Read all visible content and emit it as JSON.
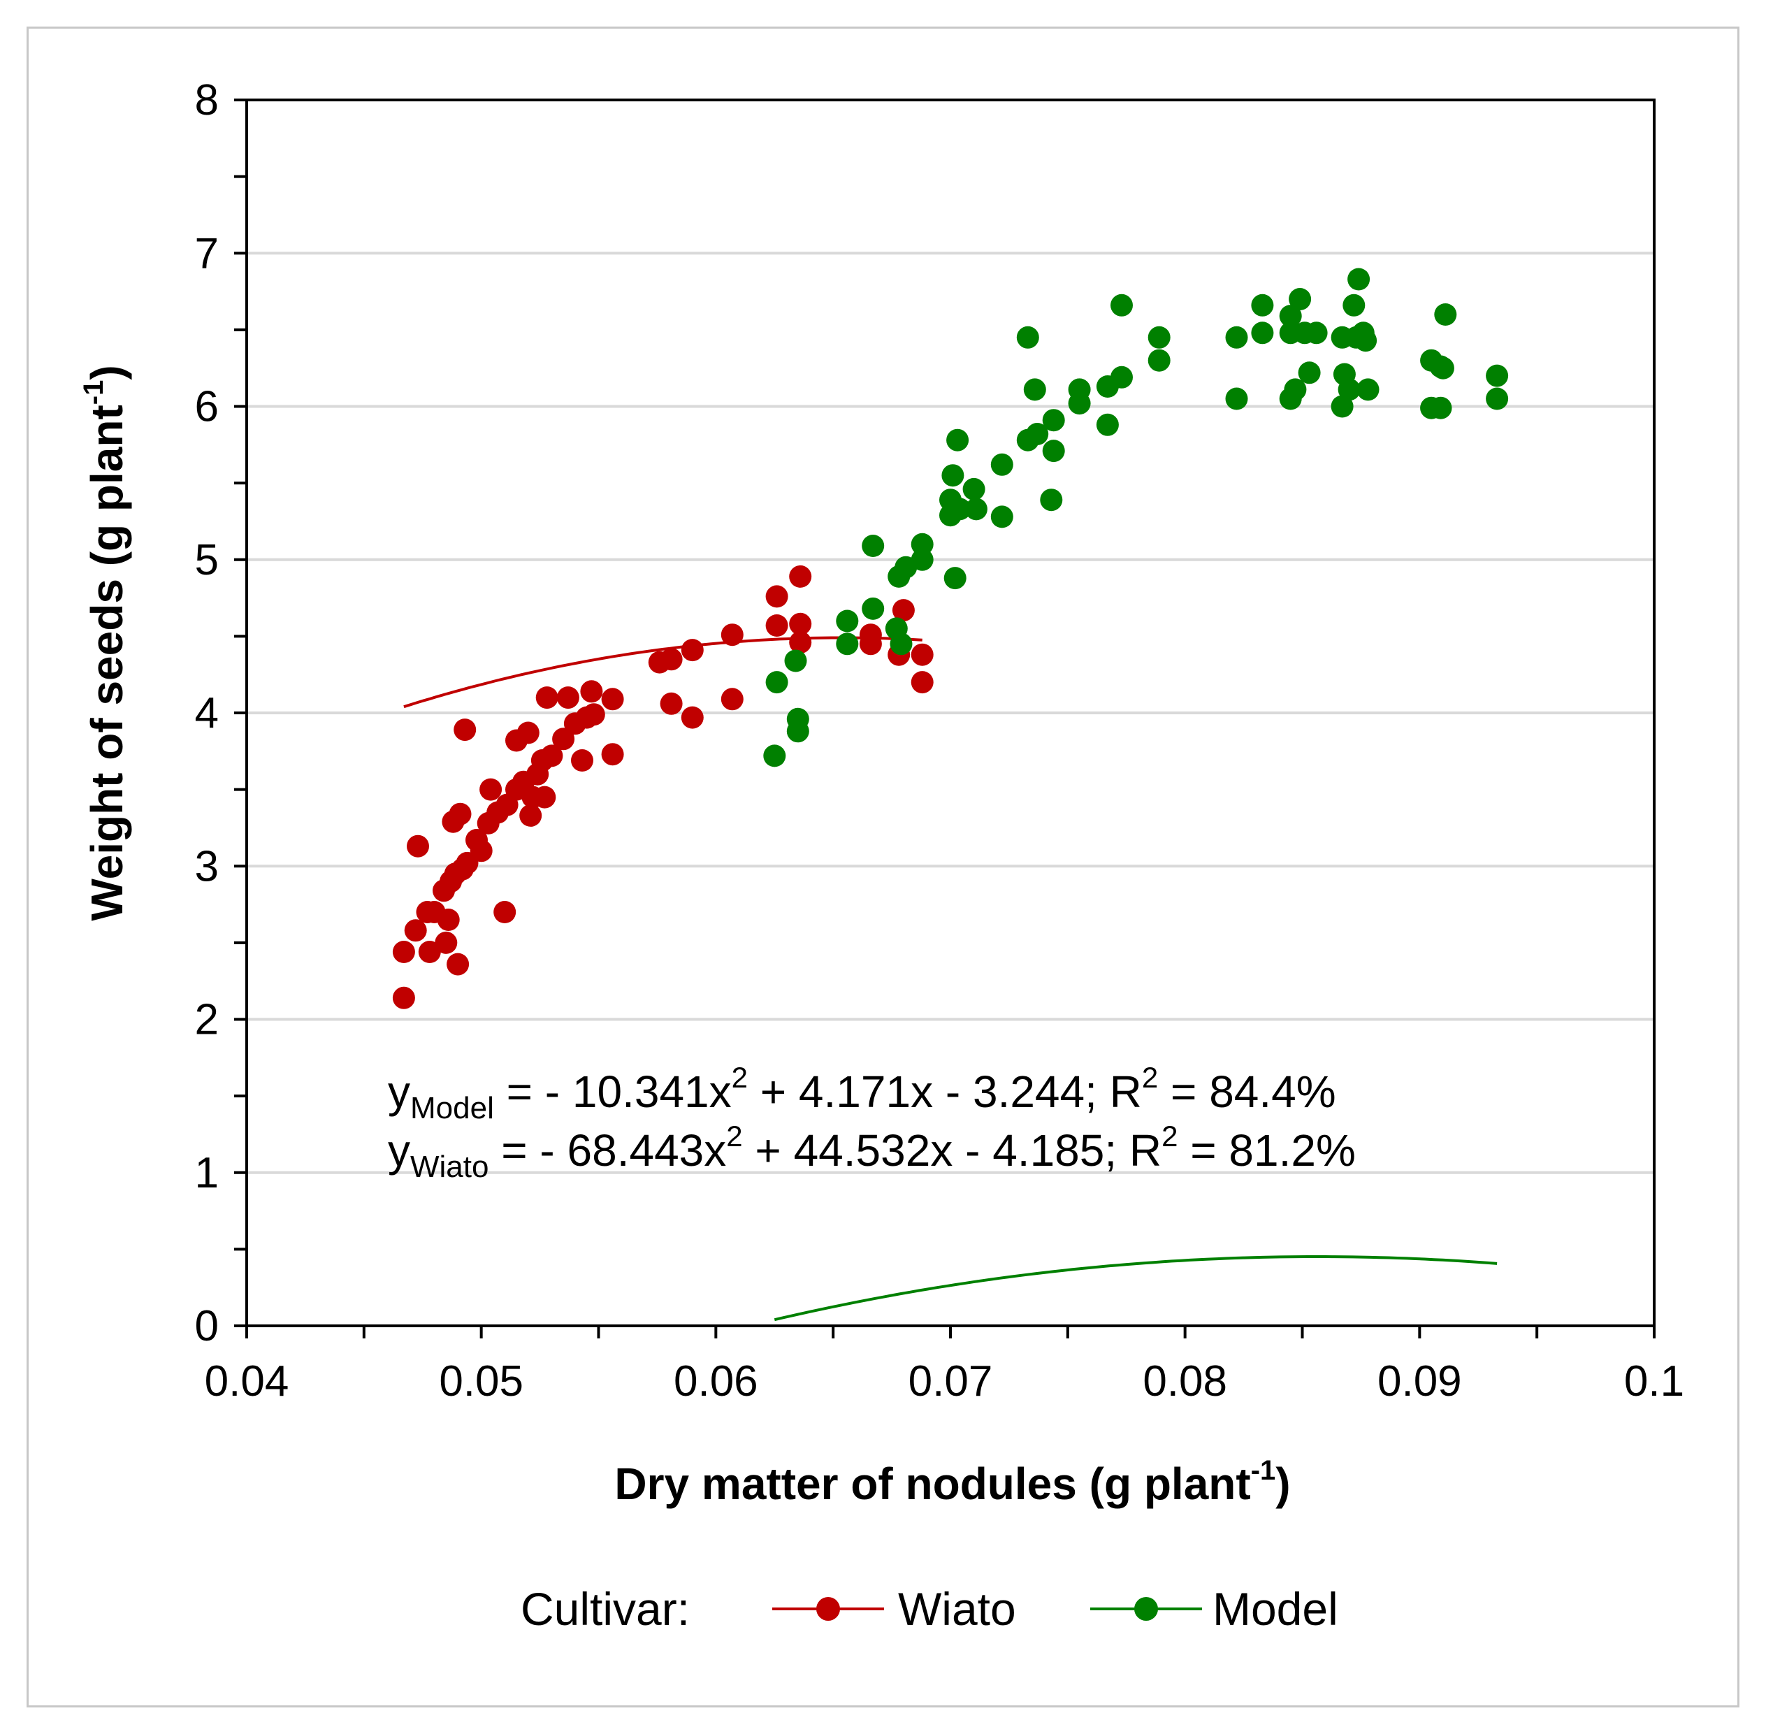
{
  "chart_data": {
    "type": "scatter",
    "title": "",
    "xlabel": "Dry matter of nodules (g plant",
    "xlabel_sup": "-1",
    "xlabel_end": ")",
    "ylabel": "Weight of seeds (g plant",
    "ylabel_sup": "-1",
    "ylabel_end": ")",
    "xlim": [
      0.04,
      0.1
    ],
    "ylim": [
      0,
      8
    ],
    "xticks": [
      0.04,
      0.05,
      0.06,
      0.07,
      0.08,
      0.09,
      0.1
    ],
    "xtick_labels": [
      "0.04",
      "0.05",
      "0.06",
      "0.07",
      "0.08",
      "0.09",
      "0.1"
    ],
    "yticks": [
      0,
      1,
      2,
      3,
      4,
      5,
      6,
      7,
      8
    ],
    "ytick_labels": [
      "0",
      "1",
      "2",
      "3",
      "4",
      "5",
      "6",
      "7",
      "8"
    ],
    "grid": "horizontal",
    "legend_title": "Cultivar:",
    "legend_position": "bottom",
    "equations": [
      {
        "y": "y",
        "sub": "Model",
        "a": " = - 10.341x",
        "sup": "2",
        "b": " + 4.171x - 3.244;  R",
        "rsup": "2",
        "c": " = 84.4%"
      },
      {
        "y": "y",
        "sub": "Wiato",
        "a": " = - 68.443x",
        "sup": "2",
        "b": " + 44.532x - 4.185; R",
        "rsup": "2",
        "c": " = 81.2%"
      }
    ],
    "series": [
      {
        "name": "Wiato",
        "color": "#c00000",
        "points": [
          [
            0.0467,
            2.14
          ],
          [
            0.0467,
            2.44
          ],
          [
            0.0472,
            2.58
          ],
          [
            0.0473,
            3.13
          ],
          [
            0.0477,
            2.7
          ],
          [
            0.0478,
            2.44
          ],
          [
            0.048,
            2.7
          ],
          [
            0.0484,
            2.84
          ],
          [
            0.0485,
            2.5
          ],
          [
            0.0486,
            2.65
          ],
          [
            0.0487,
            2.9
          ],
          [
            0.0488,
            3.29
          ],
          [
            0.0489,
            2.95
          ],
          [
            0.049,
            2.36
          ],
          [
            0.0491,
            3.34
          ],
          [
            0.0492,
            2.98
          ],
          [
            0.0493,
            3.89
          ],
          [
            0.0494,
            3.02
          ],
          [
            0.0498,
            3.17
          ],
          [
            0.05,
            3.1
          ],
          [
            0.0503,
            3.28
          ],
          [
            0.0504,
            3.5
          ],
          [
            0.0507,
            3.35
          ],
          [
            0.051,
            2.7
          ],
          [
            0.0511,
            3.4
          ],
          [
            0.0515,
            3.5
          ],
          [
            0.0515,
            3.82
          ],
          [
            0.0518,
            3.55
          ],
          [
            0.052,
            3.87
          ],
          [
            0.0521,
            3.33
          ],
          [
            0.0522,
            3.45
          ],
          [
            0.0524,
            3.6
          ],
          [
            0.0526,
            3.69
          ],
          [
            0.0527,
            3.45
          ],
          [
            0.0528,
            4.1
          ],
          [
            0.053,
            3.72
          ],
          [
            0.0535,
            3.83
          ],
          [
            0.0537,
            4.1
          ],
          [
            0.054,
            3.93
          ],
          [
            0.0543,
            3.69
          ],
          [
            0.0545,
            3.97
          ],
          [
            0.0547,
            4.14
          ],
          [
            0.0548,
            3.99
          ],
          [
            0.0556,
            4.09
          ],
          [
            0.0556,
            3.73
          ],
          [
            0.0576,
            4.33
          ],
          [
            0.0581,
            4.35
          ],
          [
            0.0581,
            4.06
          ],
          [
            0.059,
            4.41
          ],
          [
            0.059,
            3.97
          ],
          [
            0.0607,
            4.51
          ],
          [
            0.0607,
            4.09
          ],
          [
            0.0626,
            4.57
          ],
          [
            0.0626,
            4.76
          ],
          [
            0.0636,
            4.89
          ],
          [
            0.0636,
            4.58
          ],
          [
            0.0636,
            4.46
          ],
          [
            0.0666,
            4.51
          ],
          [
            0.0666,
            4.45
          ],
          [
            0.0678,
            4.38
          ],
          [
            0.068,
            4.67
          ],
          [
            0.0688,
            4.38
          ],
          [
            0.0688,
            4.2
          ]
        ]
      },
      {
        "name": "Model",
        "color": "#008000",
        "points": [
          [
            0.0625,
            3.72
          ],
          [
            0.0626,
            4.2
          ],
          [
            0.0634,
            4.34
          ],
          [
            0.0635,
            3.96
          ],
          [
            0.0635,
            3.88
          ],
          [
            0.0656,
            4.6
          ],
          [
            0.0656,
            4.45
          ],
          [
            0.0667,
            4.68
          ],
          [
            0.0667,
            5.09
          ],
          [
            0.0677,
            4.55
          ],
          [
            0.0678,
            4.89
          ],
          [
            0.0679,
            4.45
          ],
          [
            0.0681,
            4.95
          ],
          [
            0.0688,
            5.1
          ],
          [
            0.0688,
            5.0
          ],
          [
            0.07,
            5.39
          ],
          [
            0.07,
            5.29
          ],
          [
            0.0701,
            5.55
          ],
          [
            0.0702,
            4.88
          ],
          [
            0.0703,
            5.78
          ],
          [
            0.0704,
            5.33
          ],
          [
            0.071,
            5.46
          ],
          [
            0.0711,
            5.33
          ],
          [
            0.0722,
            5.28
          ],
          [
            0.0722,
            5.62
          ],
          [
            0.0733,
            5.78
          ],
          [
            0.0733,
            6.45
          ],
          [
            0.0736,
            6.11
          ],
          [
            0.0737,
            5.82
          ],
          [
            0.0743,
            5.39
          ],
          [
            0.0744,
            5.91
          ],
          [
            0.0744,
            5.71
          ],
          [
            0.0755,
            6.02
          ],
          [
            0.0755,
            6.11
          ],
          [
            0.0767,
            6.13
          ],
          [
            0.0767,
            5.88
          ],
          [
            0.0773,
            6.19
          ],
          [
            0.0773,
            6.66
          ],
          [
            0.0789,
            6.45
          ],
          [
            0.0789,
            6.3
          ],
          [
            0.0822,
            6.45
          ],
          [
            0.0822,
            6.05
          ],
          [
            0.0833,
            6.66
          ],
          [
            0.0833,
            6.48
          ],
          [
            0.0845,
            6.59
          ],
          [
            0.0845,
            6.48
          ],
          [
            0.0845,
            6.05
          ],
          [
            0.0847,
            6.11
          ],
          [
            0.0849,
            6.7
          ],
          [
            0.0851,
            6.48
          ],
          [
            0.0853,
            6.22
          ],
          [
            0.0856,
            6.48
          ],
          [
            0.0867,
            6.45
          ],
          [
            0.0867,
            6.0
          ],
          [
            0.0868,
            6.21
          ],
          [
            0.087,
            6.11
          ],
          [
            0.0872,
            6.66
          ],
          [
            0.0873,
            6.45
          ],
          [
            0.0874,
            6.83
          ],
          [
            0.0876,
            6.48
          ],
          [
            0.0877,
            6.43
          ],
          [
            0.0878,
            6.11
          ],
          [
            0.0905,
            6.3
          ],
          [
            0.0905,
            5.99
          ],
          [
            0.0909,
            6.26
          ],
          [
            0.0909,
            5.99
          ],
          [
            0.091,
            6.25
          ],
          [
            0.0911,
            6.6
          ],
          [
            0.0933,
            6.2
          ],
          [
            0.0933,
            6.05
          ]
        ]
      }
    ]
  }
}
